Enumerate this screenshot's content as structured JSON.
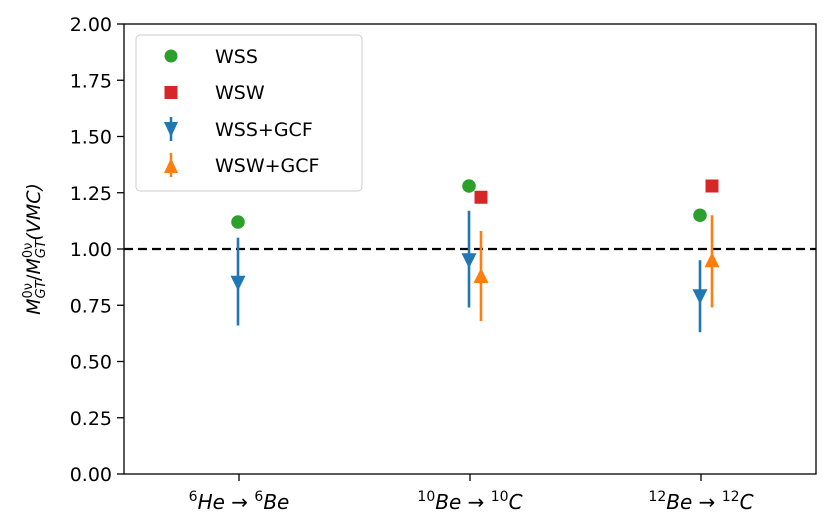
{
  "chart_data": {
    "type": "scatter",
    "title": "",
    "xlabel": "",
    "ylabel": "M_GT^0ν / M_GT^0ν (VMC)",
    "ylabel_parts": {
      "num_base": "M",
      "num_sub": "GT",
      "num_sup": "0ν",
      "den_base": "M",
      "den_sub": "GT",
      "den_sup": "0ν",
      "slash": "/",
      "suffix": "(VMC)"
    },
    "ylim": [
      0.0,
      2.0
    ],
    "yticks": [
      "0.00",
      "0.25",
      "0.50",
      "0.75",
      "1.00",
      "1.25",
      "1.50",
      "1.75",
      "2.00"
    ],
    "ytick_values": [
      0.0,
      0.25,
      0.5,
      0.75,
      1.0,
      1.25,
      1.5,
      1.75,
      2.0
    ],
    "reference_line": {
      "y": 1.0,
      "style": "dashed",
      "color": "#000000"
    },
    "categories": [
      {
        "pre_sup": "6",
        "from": "He",
        "arrow": "→",
        "post_sup": "6",
        "to": "Be"
      },
      {
        "pre_sup": "10",
        "from": "Be",
        "arrow": "→",
        "post_sup": "10",
        "to": "C"
      },
      {
        "pre_sup": "12",
        "from": "Be",
        "arrow": "→",
        "post_sup": "12",
        "to": "C"
      }
    ],
    "series": [
      {
        "name": "WSS",
        "marker": "circle",
        "color": "#2ca02c",
        "values": [
          1.12,
          1.28,
          1.15
        ]
      },
      {
        "name": "WSW",
        "marker": "square",
        "color": "#d62728",
        "values": [
          null,
          1.23,
          1.28
        ]
      },
      {
        "name": "WSS+GCF",
        "marker": "triangle-down",
        "color": "#1f77b4",
        "values": [
          0.85,
          0.95,
          0.79
        ],
        "err_low": [
          0.66,
          0.74,
          0.63
        ],
        "err_high": [
          1.05,
          1.17,
          0.95
        ]
      },
      {
        "name": "WSW+GCF",
        "marker": "triangle-up",
        "color": "#ff7f0e",
        "values": [
          null,
          0.88,
          0.95
        ],
        "err_low": [
          null,
          0.68,
          0.74
        ],
        "err_high": [
          null,
          1.08,
          1.15
        ]
      }
    ],
    "legend": {
      "position": "top-left",
      "entries": [
        "WSS",
        "WSW",
        "WSS+GCF",
        "WSW+GCF"
      ]
    }
  }
}
